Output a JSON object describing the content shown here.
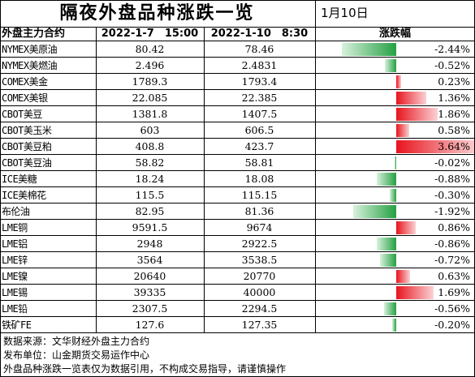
{
  "title": "隔夜外盘品种涨跌一览",
  "date": "1月10日",
  "header": {
    "contract": "外盘主力合约",
    "col1": "2022-1-7　15:00",
    "col2": "2022-1-10　8:30",
    "change": "涨跌幅"
  },
  "rows": [
    {
      "name": "NYMEX美原油",
      "v1": "80.42",
      "v2": "78.46",
      "chg": "-2.44%",
      "pct": -2.44
    },
    {
      "name": "NYMEX美燃油",
      "v1": "2.496",
      "v2": "2.4831",
      "chg": "-0.52%",
      "pct": -0.52
    },
    {
      "name": "COMEX美金",
      "v1": "1789.3",
      "v2": "1793.4",
      "chg": "0.23%",
      "pct": 0.23
    },
    {
      "name": "COMEX美银",
      "v1": "22.085",
      "v2": "22.385",
      "chg": "1.36%",
      "pct": 1.36
    },
    {
      "name": "CBOT美豆",
      "v1": "1381.8",
      "v2": "1407.5",
      "chg": "1.86%",
      "pct": 1.86
    },
    {
      "name": "CBOT美玉米",
      "v1": "603",
      "v2": "606.5",
      "chg": "0.58%",
      "pct": 0.58
    },
    {
      "name": "CBOT美豆粕",
      "v1": "408.8",
      "v2": "423.7",
      "chg": "3.64%",
      "pct": 3.64
    },
    {
      "name": "CBOT美豆油",
      "v1": "58.82",
      "v2": "58.81",
      "chg": "-0.02%",
      "pct": -0.02
    },
    {
      "name": "ICE美糖",
      "v1": "18.24",
      "v2": "18.08",
      "chg": "-0.88%",
      "pct": -0.88
    },
    {
      "name": "ICE美棉花",
      "v1": "115.5",
      "v2": "115.15",
      "chg": "-0.30%",
      "pct": -0.3
    },
    {
      "name": "布伦油",
      "v1": "82.95",
      "v2": "81.36",
      "chg": "-1.92%",
      "pct": -1.92
    },
    {
      "name": "LME铜",
      "v1": "9591.5",
      "v2": "9674",
      "chg": "0.86%",
      "pct": 0.86
    },
    {
      "name": "LME铝",
      "v1": "2948",
      "v2": "2922.5",
      "chg": "-0.86%",
      "pct": -0.86
    },
    {
      "name": "LME锌",
      "v1": "3564",
      "v2": "3538.5",
      "chg": "-0.72%",
      "pct": -0.72
    },
    {
      "name": "LME镍",
      "v1": "20640",
      "v2": "20770",
      "chg": "0.63%",
      "pct": 0.63
    },
    {
      "name": "LME锡",
      "v1": "39335",
      "v2": "40000",
      "chg": "1.69%",
      "pct": 1.69
    },
    {
      "name": "LME铅",
      "v1": "2307.5",
      "v2": "2294.5",
      "chg": "-0.56%",
      "pct": -0.56
    },
    {
      "name": "铁矿FE",
      "v1": "127.6",
      "v2": "127.35",
      "chg": "-0.20%",
      "pct": -0.2
    }
  ],
  "footer": {
    "source": "数据来源：文华财经外盘主力合约",
    "publisher": "发布单位：山金期货交易运作中心",
    "disclaimer": "外盘品种涨跌一览表仅为数据引用，不构成交易指导，请谨慎操作"
  },
  "colors": {
    "up": "#e8141e",
    "down": "#25a043"
  }
}
